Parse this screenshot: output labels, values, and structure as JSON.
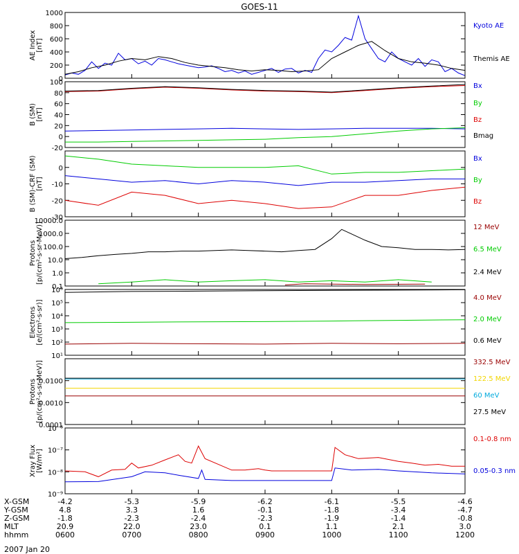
{
  "title": "GOES-11",
  "date": "2007 Jan 20",
  "colors": {
    "black": "#000000",
    "blue": "#0000dd",
    "green": "#00cc00",
    "red": "#dd0000",
    "darkred": "#990000",
    "cyan": "#00aadd",
    "yellow": "#f2d600"
  },
  "chart_data": [
    {
      "type": "line",
      "ylabel": [
        "AE Index",
        "[nT]"
      ],
      "ylim": [
        0,
        1000
      ],
      "yscale": "linear",
      "yticks": [
        "0",
        "200",
        "400",
        "600",
        "800",
        "1000"
      ],
      "series": [
        {
          "name": "Kyoto AE",
          "color": "blue",
          "x": [
            0,
            0.1,
            0.2,
            0.3,
            0.4,
            0.5,
            0.6,
            0.7,
            0.8,
            0.9,
            1.0,
            1.1,
            1.2,
            1.3,
            1.4,
            1.5,
            1.6,
            1.7,
            1.8,
            1.9,
            2.0,
            2.1,
            2.2,
            2.3,
            2.4,
            2.5,
            2.6,
            2.7,
            2.8,
            2.9,
            3.0,
            3.1,
            3.2,
            3.3,
            3.4,
            3.5,
            3.6,
            3.7,
            3.8,
            3.9,
            4.0,
            4.1,
            4.2,
            4.3,
            4.4,
            4.5,
            4.6,
            4.7,
            4.8,
            4.9,
            5.0,
            5.1,
            5.2,
            5.3,
            5.4,
            5.5,
            5.6,
            5.7,
            5.8,
            5.9,
            6.0
          ],
          "y": [
            50,
            80,
            60,
            120,
            250,
            150,
            230,
            200,
            380,
            280,
            300,
            220,
            260,
            200,
            300,
            280,
            250,
            220,
            200,
            180,
            160,
            170,
            190,
            150,
            100,
            120,
            80,
            110,
            60,
            90,
            120,
            150,
            90,
            140,
            150,
            80,
            120,
            90,
            300,
            430,
            400,
            500,
            620,
            580,
            950,
            600,
            450,
            300,
            250,
            400,
            300,
            250,
            200,
            300,
            180,
            280,
            250,
            100,
            150,
            80,
            40
          ]
        },
        {
          "name": "Themis AE",
          "color": "black",
          "x": [
            0,
            0.2,
            0.4,
            0.6,
            0.8,
            1.0,
            1.2,
            1.4,
            1.6,
            1.8,
            2.0,
            2.2,
            2.4,
            2.6,
            2.8,
            3.0,
            3.2,
            3.4,
            3.6,
            3.8,
            4.0,
            4.2,
            4.4,
            4.6,
            4.8,
            5.0,
            5.2,
            5.4,
            5.6,
            5.8,
            6.0
          ],
          "y": [
            60,
            100,
            160,
            200,
            260,
            300,
            280,
            330,
            300,
            240,
            200,
            180,
            160,
            130,
            110,
            130,
            120,
            100,
            110,
            130,
            300,
            400,
            500,
            560,
            420,
            300,
            250,
            230,
            200,
            150,
            120
          ]
        }
      ]
    },
    {
      "type": "line",
      "ylabel": [
        "B (SM)",
        "[nT]"
      ],
      "ylim": [
        -20,
        100
      ],
      "yscale": "linear",
      "yticks": [
        "-20",
        "0",
        "20",
        "40",
        "60",
        "80",
        "100"
      ],
      "series": [
        {
          "name": "Bx",
          "color": "blue",
          "x": [
            0,
            0.5,
            1.0,
            1.5,
            2.0,
            2.5,
            3.0,
            3.5,
            4.0,
            4.5,
            5.0,
            5.5,
            6.0
          ],
          "y": [
            10,
            11,
            12,
            13,
            14,
            15,
            14,
            13,
            14,
            15,
            15,
            15,
            14
          ]
        },
        {
          "name": "By",
          "color": "green",
          "x": [
            0,
            0.5,
            1.0,
            1.5,
            2.0,
            2.5,
            3.0,
            3.5,
            4.0,
            4.5,
            5.0,
            5.5,
            6.0
          ],
          "y": [
            -10,
            -10,
            -9,
            -8,
            -7,
            -6,
            -5,
            -2,
            0,
            5,
            10,
            14,
            16
          ]
        },
        {
          "name": "Bz",
          "color": "red",
          "x": [
            0,
            0.5,
            1.0,
            1.5,
            2.0,
            2.5,
            3.0,
            3.5,
            4.0,
            4.5,
            5.0,
            5.5,
            6.0
          ],
          "y": [
            82,
            83,
            87,
            90,
            88,
            85,
            83,
            82,
            80,
            84,
            88,
            91,
            93
          ]
        },
        {
          "name": "Bmag",
          "color": "black",
          "x": [
            0,
            0.5,
            1.0,
            1.5,
            2.0,
            2.5,
            3.0,
            3.5,
            4.0,
            4.5,
            5.0,
            5.5,
            6.0
          ],
          "y": [
            83,
            84,
            88,
            91,
            89,
            86,
            84,
            83,
            81,
            85,
            89,
            92,
            95
          ]
        }
      ]
    },
    {
      "type": "line",
      "ylabel": [
        "B (SM)-CRF (SM)",
        "[nT]"
      ],
      "ylim": [
        -30,
        10
      ],
      "yscale": "linear",
      "yticks": [
        "-30",
        "-20",
        "-10",
        "0"
      ],
      "series": [
        {
          "name": "Bx",
          "color": "blue",
          "x": [
            0,
            0.5,
            1.0,
            1.5,
            2.0,
            2.5,
            3.0,
            3.5,
            4.0,
            4.5,
            5.0,
            5.5,
            6.0
          ],
          "y": [
            -5,
            -7,
            -9,
            -8,
            -10,
            -8,
            -9,
            -11,
            -9,
            -9,
            -8,
            -7,
            -7
          ]
        },
        {
          "name": "By",
          "color": "green",
          "x": [
            0,
            0.5,
            1.0,
            1.5,
            2.0,
            2.5,
            3.0,
            3.5,
            4.0,
            4.5,
            5.0,
            5.5,
            6.0
          ],
          "y": [
            7,
            5,
            2,
            1,
            0,
            0,
            0,
            1,
            -4,
            -3,
            -3,
            -2,
            -1
          ]
        },
        {
          "name": "Bz",
          "color": "red",
          "x": [
            0,
            0.5,
            1.0,
            1.5,
            2.0,
            2.5,
            3.0,
            3.5,
            4.0,
            4.5,
            5.0,
            5.5,
            6.0
          ],
          "y": [
            -20,
            -23,
            -15,
            -17,
            -22,
            -20,
            -22,
            -25,
            -24,
            -17,
            -17,
            -14,
            -12
          ]
        }
      ]
    },
    {
      "type": "line",
      "ylabel": [
        "Protons",
        "[p/(cm²-s-sr-MeV)]"
      ],
      "ylim": [
        0.1,
        10000
      ],
      "yscale": "log",
      "yticks": [
        "0.1",
        "1.0",
        "10.0",
        "100.0",
        "1000.0",
        "10000.0"
      ],
      "series": [
        {
          "name": "12 MeV",
          "color": "darkred",
          "x": [
            3.3,
            3.6,
            4.5,
            5.4
          ],
          "y": [
            0.12,
            0.15,
            0.13,
            0.14
          ]
        },
        {
          "name": "6.5 MeV",
          "color": "green",
          "x": [
            0.5,
            1.0,
            1.5,
            2.0,
            2.5,
            3.0,
            3.5,
            4.0,
            4.5,
            5.0,
            5.5
          ],
          "y": [
            0.15,
            0.2,
            0.3,
            0.2,
            0.25,
            0.3,
            0.2,
            0.25,
            0.2,
            0.3,
            0.2
          ]
        },
        {
          "name": "2.4 MeV",
          "color": "black",
          "x": [
            0,
            0.25,
            0.5,
            0.75,
            1.0,
            1.25,
            1.5,
            1.75,
            2.0,
            2.25,
            2.5,
            2.75,
            3.0,
            3.25,
            3.5,
            3.75,
            4.0,
            4.15,
            4.3,
            4.5,
            4.75,
            5.0,
            5.25,
            5.5,
            5.75,
            6.0
          ],
          "y": [
            12,
            15,
            20,
            25,
            30,
            40,
            40,
            45,
            45,
            50,
            55,
            50,
            45,
            40,
            50,
            60,
            400,
            2000,
            900,
            300,
            100,
            80,
            60,
            60,
            55,
            60
          ]
        }
      ]
    },
    {
      "type": "line",
      "ylabel": [
        "Electrons",
        "[e/(cm²-s-sr)]"
      ],
      "ylim": [
        10,
        1000000
      ],
      "yscale": "log",
      "yticks": [
        "10¹",
        "10²",
        "10³",
        "10⁴",
        "10⁵",
        "10⁶"
      ],
      "series": [
        {
          "name": "4.0 MeV",
          "color": "darkred",
          "x": [
            0,
            1.0,
            2.0,
            3.0,
            4.0,
            5.0,
            6.0
          ],
          "y": [
            70,
            80,
            75,
            70,
            80,
            75,
            80
          ]
        },
        {
          "name": "2.0 MeV",
          "color": "green",
          "x": [
            0,
            1.0,
            2.0,
            3.0,
            4.0,
            5.0,
            6.0
          ],
          "y": [
            3000,
            3200,
            3500,
            3600,
            4000,
            4500,
            5000
          ]
        },
        {
          "name": "0.6 MeV",
          "color": "black",
          "x": [
            0,
            1.0,
            2.0,
            3.0,
            4.0,
            5.0,
            6.0
          ],
          "y": [
            600000,
            700000,
            750000,
            800000,
            850000,
            900000,
            950000
          ]
        }
      ]
    },
    {
      "type": "line",
      "ylabel": [
        "Protons",
        "[p/(cm²-s-sr-MeV)]"
      ],
      "ylim": [
        0.0001,
        0.1
      ],
      "yscale": "log",
      "yticks": [
        "0.0001",
        "0.0010",
        "0.0100"
      ],
      "series": [
        {
          "name": "332.5 MeV",
          "color": "darkred",
          "x": [
            0,
            1.0,
            2.0,
            3.0,
            4.0,
            5.0,
            6.0
          ],
          "y": [
            0.002,
            0.002,
            0.002,
            0.002,
            0.002,
            0.002,
            0.002
          ]
        },
        {
          "name": "122.5 MeV",
          "color": "yellow",
          "x": [
            0,
            1.0,
            2.0,
            3.0,
            4.0,
            5.0,
            6.0
          ],
          "y": [
            0.0045,
            0.0045,
            0.0045,
            0.0045,
            0.0045,
            0.0045,
            0.0045
          ]
        },
        {
          "name": "60 MeV",
          "color": "cyan",
          "x": [
            0,
            1.0,
            2.0,
            3.0,
            4.0,
            5.0,
            6.0
          ],
          "y": [
            0.012,
            0.012,
            0.012,
            0.012,
            0.012,
            0.012,
            0.012
          ]
        },
        {
          "name": "27.5 MeV",
          "color": "black",
          "x": [
            0,
            1.0,
            2.0,
            3.0,
            4.0,
            5.0,
            6.0
          ],
          "y": [
            0.013,
            0.013,
            0.013,
            0.013,
            0.013,
            0.013,
            0.013
          ]
        }
      ]
    },
    {
      "type": "line",
      "ylabel": [
        "Xray Flux",
        "[W/m²]"
      ],
      "ylim": [
        1e-09,
        1e-06
      ],
      "yscale": "log",
      "yticks": [
        "10⁻⁹",
        "10⁻⁸",
        "10⁻⁷",
        "10⁻⁶"
      ],
      "series": [
        {
          "name": "0.1-0.8 nm",
          "color": "red",
          "x": [
            0,
            0.3,
            0.5,
            0.7,
            0.9,
            1.0,
            1.1,
            1.3,
            1.5,
            1.7,
            1.8,
            1.9,
            2.0,
            2.1,
            2.5,
            2.7,
            2.9,
            3.0,
            3.1,
            3.5,
            3.9,
            4.0,
            4.05,
            4.2,
            4.4,
            4.7,
            5.0,
            5.2,
            5.4,
            5.6,
            5.8,
            6.0
          ],
          "y": [
            1.1e-08,
            1e-08,
            6e-09,
            1.2e-08,
            1.3e-08,
            2.5e-08,
            1.5e-08,
            2e-08,
            3.5e-08,
            6e-08,
            3e-08,
            2.5e-08,
            1.5e-07,
            4e-08,
            1.2e-08,
            1.2e-08,
            1.4e-08,
            1.2e-08,
            1.1e-08,
            1.1e-08,
            1.1e-08,
            1.1e-08,
            1.3e-07,
            6e-08,
            4e-08,
            4.5e-08,
            3e-08,
            2.5e-08,
            2e-08,
            2.2e-08,
            1.8e-08,
            1.8e-08
          ]
        },
        {
          "name": "0.05-0.3 nm",
          "color": "blue",
          "x": [
            0,
            0.5,
            1.0,
            1.2,
            1.5,
            1.7,
            2.0,
            2.05,
            2.1,
            2.5,
            3.0,
            3.5,
            4.0,
            4.05,
            4.3,
            4.7,
            5.0,
            5.5,
            6.0
          ],
          "y": [
            3.5e-09,
            3.6e-09,
            6e-09,
            1e-08,
            9e-09,
            7e-09,
            5e-09,
            1.2e-08,
            4.5e-09,
            4e-09,
            4e-09,
            4e-09,
            4e-09,
            1.5e-08,
            1.2e-08,
            1.3e-08,
            1.1e-08,
            9e-09,
            8e-09
          ]
        }
      ]
    }
  ],
  "x_axis": {
    "range": [
      0,
      6
    ],
    "rows": [
      {
        "label": "X-GSM",
        "values": [
          "-4.2",
          "-5.3",
          "-5.9",
          "-6.2",
          "-6.1",
          "-5.5",
          "-4.6"
        ]
      },
      {
        "label": "Y-GSM",
        "values": [
          "4.8",
          "3.3",
          "1.6",
          "-0.1",
          "-1.8",
          "-3.4",
          "-4.7"
        ]
      },
      {
        "label": "Z-GSM",
        "values": [
          "-1.8",
          "-2.3",
          "-2.4",
          "-2.3",
          "-1.9",
          "-1.4",
          "-0.8"
        ]
      },
      {
        "label": "MLT",
        "values": [
          "20.9",
          "22.0",
          "23.0",
          "0.1",
          "1.1",
          "2.1",
          "3.0"
        ]
      },
      {
        "label": "hhmm",
        "values": [
          "0600",
          "0700",
          "0800",
          "0900",
          "1000",
          "1100",
          "1200"
        ]
      }
    ]
  }
}
